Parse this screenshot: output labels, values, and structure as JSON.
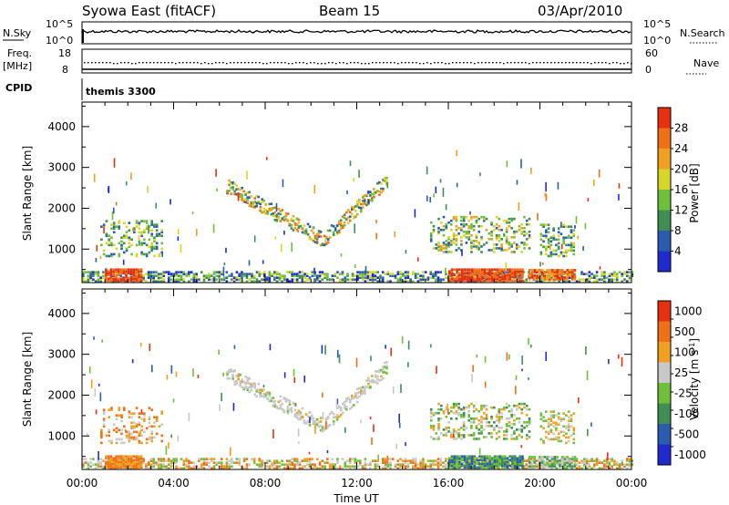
{
  "header": {
    "station": "Syowa East (fitACF)",
    "beam": "Beam 15",
    "date": "03/Apr/2010"
  },
  "top_panels": {
    "nsky_label": "N.Sky",
    "nsky_ticks": [
      "10^5",
      "10^0"
    ],
    "nsearch_label": "N.Search",
    "nsearch_ticks": [
      "10^5",
      "10^0"
    ],
    "freq_label": "Freq.",
    "freq_unit": "[MHz]",
    "freq_ticks": [
      "18",
      "8"
    ],
    "nave_label": "Nave",
    "nave_ticks": [
      "60",
      "0"
    ],
    "cpid_label": "CPID",
    "cpid_value": "themis 3300"
  },
  "chart_data": [
    {
      "type": "heatmap",
      "name": "power",
      "ylabel": "Slant Range [km]",
      "xlabel": "",
      "ylim": [
        180,
        4600
      ],
      "yticks": [
        "1000",
        "2000",
        "3000",
        "4000"
      ],
      "colorbar_label": "Power [dB]",
      "colorbar_ticks": [
        "4",
        "8",
        "12",
        "16",
        "20",
        "24",
        "28"
      ],
      "colors": [
        "#1f2bd1",
        "#2a5db0",
        "#3f8f55",
        "#6fbf3a",
        "#d8d52a",
        "#f0a020",
        "#f07018",
        "#e63010"
      ]
    },
    {
      "type": "heatmap",
      "name": "velocity",
      "ylabel": "Slant Range [km]",
      "xlabel": "Time UT",
      "ylim": [
        180,
        4600
      ],
      "yticks": [
        "1000",
        "2000",
        "3000",
        "4000"
      ],
      "colorbar_label": "Velocity [m s^-1]",
      "colorbar_ticks": [
        "1000",
        "500",
        "100",
        "25",
        "-25",
        "-100",
        "-500",
        "-1000"
      ],
      "colors": [
        "#1f2bd1",
        "#2a5db0",
        "#3f8f55",
        "#6fbf3a",
        "#c8c8c8",
        "#f0a020",
        "#f07018",
        "#e63010"
      ]
    }
  ],
  "x_axis": {
    "ticks": [
      "00:00",
      "04:00",
      "08:00",
      "12:00",
      "16:00",
      "20:00",
      "00:00"
    ],
    "label": "Time UT"
  }
}
